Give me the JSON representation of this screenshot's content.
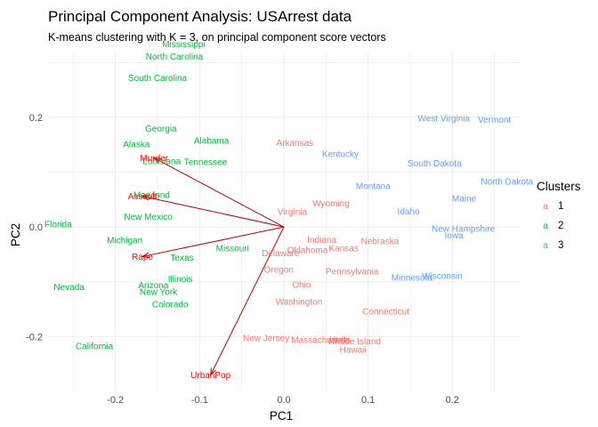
{
  "chart_data": {
    "type": "scatter",
    "title": "Principal Component Analysis: USArrest data",
    "subtitle": "K-means clustering with K = 3, on principal component score vectors",
    "xlabel": "PC1",
    "ylabel": "PC2",
    "xlim": [
      -0.28,
      0.28
    ],
    "ylim": [
      -0.3,
      0.32
    ],
    "xticks": [
      -0.2,
      -0.1,
      0.0,
      0.1,
      0.2
    ],
    "yticks": [
      -0.2,
      0.0,
      0.2
    ],
    "xtick_labels": [
      "-0.2",
      "-0.1",
      "0.0",
      "0.1",
      "0.2"
    ],
    "ytick_labels": [
      "-0.2",
      "0.0",
      "0.2"
    ],
    "grid": true,
    "legend": {
      "title": "Clusters",
      "position": "right",
      "entries": [
        {
          "key": "a",
          "label": "1",
          "color": "#F8766D"
        },
        {
          "key": "a",
          "label": "2",
          "color": "#00BA38"
        },
        {
          "key": "a",
          "label": "3",
          "color": "#619CFF"
        }
      ]
    },
    "cluster_colors": {
      "1": "#F8766D",
      "2": "#00BA38",
      "3": "#619CFF"
    },
    "points": [
      {
        "name": "Mississippi",
        "x": -0.119,
        "y": 0.334,
        "cluster": "2"
      },
      {
        "name": "North Carolina",
        "x": -0.13,
        "y": 0.311,
        "cluster": "2"
      },
      {
        "name": "South Carolina",
        "x": -0.15,
        "y": 0.272,
        "cluster": "2"
      },
      {
        "name": "Georgia",
        "x": -0.146,
        "y": 0.18,
        "cluster": "2"
      },
      {
        "name": "Alaska",
        "x": -0.175,
        "y": 0.151,
        "cluster": "2"
      },
      {
        "name": "Alabama",
        "x": -0.086,
        "y": 0.158,
        "cluster": "2"
      },
      {
        "name": "Louisiana",
        "x": -0.145,
        "y": 0.12,
        "cluster": "2"
      },
      {
        "name": "Tennessee",
        "x": -0.093,
        "y": 0.119,
        "cluster": "2"
      },
      {
        "name": "Maryland",
        "x": -0.157,
        "y": 0.059,
        "cluster": "2"
      },
      {
        "name": "New Mexico",
        "x": -0.161,
        "y": 0.019,
        "cluster": "2"
      },
      {
        "name": "Florida",
        "x": -0.268,
        "y": 0.005,
        "cluster": "2"
      },
      {
        "name": "Michigan",
        "x": -0.189,
        "y": -0.024,
        "cluster": "2"
      },
      {
        "name": "Missouri",
        "x": -0.061,
        "y": -0.039,
        "cluster": "2"
      },
      {
        "name": "Texas",
        "x": -0.121,
        "y": -0.056,
        "cluster": "2"
      },
      {
        "name": "Illinois",
        "x": -0.123,
        "y": -0.095,
        "cluster": "2"
      },
      {
        "name": "Arizona",
        "x": -0.155,
        "y": -0.106,
        "cluster": "2"
      },
      {
        "name": "New York",
        "x": -0.149,
        "y": -0.118,
        "cluster": "2"
      },
      {
        "name": "Nevada",
        "x": -0.255,
        "y": -0.109,
        "cluster": "2"
      },
      {
        "name": "Colorado",
        "x": -0.135,
        "y": -0.141,
        "cluster": "2"
      },
      {
        "name": "California",
        "x": -0.225,
        "y": -0.217,
        "cluster": "2"
      },
      {
        "name": "Arkansas",
        "x": 0.013,
        "y": 0.154,
        "cluster": "1"
      },
      {
        "name": "Wyoming",
        "x": 0.056,
        "y": 0.043,
        "cluster": "1"
      },
      {
        "name": "Virginia",
        "x": 0.01,
        "y": 0.028,
        "cluster": "1"
      },
      {
        "name": "Indiana",
        "x": 0.045,
        "y": -0.023,
        "cluster": "1"
      },
      {
        "name": "Nebraska",
        "x": 0.114,
        "y": -0.026,
        "cluster": "1"
      },
      {
        "name": "Oklahoma",
        "x": 0.028,
        "y": -0.042,
        "cluster": "1"
      },
      {
        "name": "Kansas",
        "x": 0.071,
        "y": -0.039,
        "cluster": "1"
      },
      {
        "name": "Delaware",
        "x": -0.004,
        "y": -0.048,
        "cluster": "1"
      },
      {
        "name": "Oregon",
        "x": -0.006,
        "y": -0.078,
        "cluster": "1"
      },
      {
        "name": "Pennsylvania",
        "x": 0.081,
        "y": -0.081,
        "cluster": "1"
      },
      {
        "name": "Ohio",
        "x": 0.021,
        "y": -0.105,
        "cluster": "1"
      },
      {
        "name": "Washington",
        "x": 0.018,
        "y": -0.136,
        "cluster": "1"
      },
      {
        "name": "Connecticut",
        "x": 0.121,
        "y": -0.154,
        "cluster": "1"
      },
      {
        "name": "New Jersey",
        "x": -0.021,
        "y": -0.203,
        "cluster": "1"
      },
      {
        "name": "Massachusetts",
        "x": 0.044,
        "y": -0.206,
        "cluster": "1"
      },
      {
        "name": "Utah",
        "x": 0.065,
        "y": -0.206,
        "cluster": "1"
      },
      {
        "name": "Rhode Island",
        "x": 0.084,
        "y": -0.208,
        "cluster": "1"
      },
      {
        "name": "Hawaii",
        "x": 0.082,
        "y": -0.224,
        "cluster": "1"
      },
      {
        "name": "West Virginia",
        "x": 0.19,
        "y": 0.198,
        "cluster": "3"
      },
      {
        "name": "Vermont",
        "x": 0.25,
        "y": 0.196,
        "cluster": "3"
      },
      {
        "name": "Kentucky",
        "x": 0.067,
        "y": 0.133,
        "cluster": "3"
      },
      {
        "name": "South Dakota",
        "x": 0.179,
        "y": 0.116,
        "cluster": "3"
      },
      {
        "name": "North Dakota",
        "x": 0.265,
        "y": 0.083,
        "cluster": "3"
      },
      {
        "name": "Montana",
        "x": 0.106,
        "y": 0.075,
        "cluster": "3"
      },
      {
        "name": "Maine",
        "x": 0.214,
        "y": 0.052,
        "cluster": "3"
      },
      {
        "name": "Idaho",
        "x": 0.148,
        "y": 0.029,
        "cluster": "3"
      },
      {
        "name": "New Hampshire",
        "x": 0.213,
        "y": -0.003,
        "cluster": "3"
      },
      {
        "name": "Iowa",
        "x": 0.202,
        "y": -0.015,
        "cluster": "3"
      },
      {
        "name": "Minnesota",
        "x": 0.152,
        "y": -0.092,
        "cluster": "3"
      },
      {
        "name": "Wisconsin",
        "x": 0.188,
        "y": -0.089,
        "cluster": "3"
      }
    ],
    "loadings": [
      {
        "name": "Murder",
        "x": -0.154,
        "y": 0.126
      },
      {
        "name": "Assault",
        "x": -0.168,
        "y": 0.056
      },
      {
        "name": "Rape",
        "x": -0.168,
        "y": -0.054
      },
      {
        "name": "UrbanPop",
        "x": -0.087,
        "y": -0.27
      }
    ],
    "loading_color": "#ff0000",
    "arrow_color": "#b30000"
  }
}
